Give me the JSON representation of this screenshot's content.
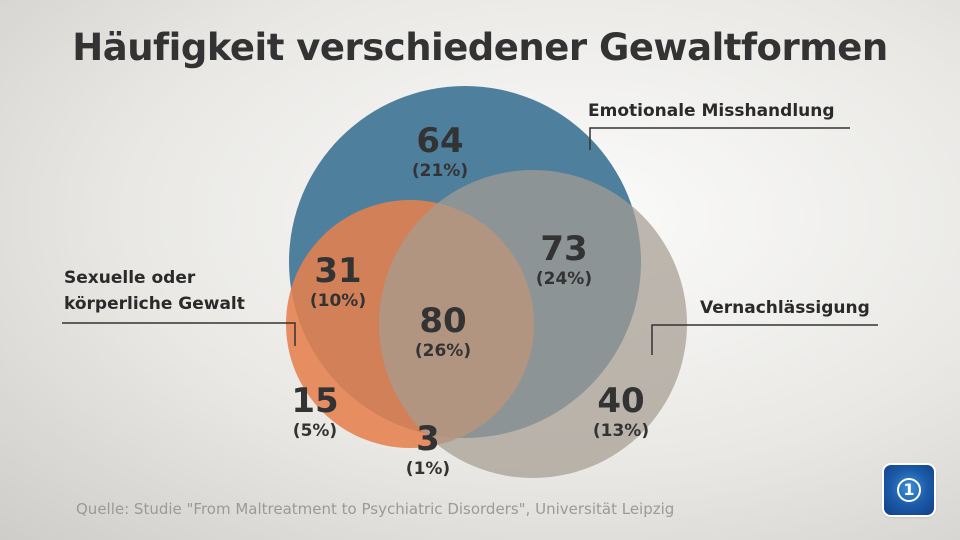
{
  "title": "Häufigkeit verschiedener Gewaltformen",
  "labels": {
    "emotional": "Emotionale Misshandlung",
    "sexual_line1": "Sexuelle oder",
    "sexual_line2": "körperliche Gewalt",
    "neglect": "Vernachlässigung"
  },
  "colors": {
    "emotional": "#4e7f9d",
    "sexual": "#e5814f",
    "neglect": "#a59c91"
  },
  "regions": [
    {
      "id": "emotional-only",
      "count": "64",
      "pct": "(21%)"
    },
    {
      "id": "emotional-sexual",
      "count": "31",
      "pct": "(10%)"
    },
    {
      "id": "emotional-neglect",
      "count": "73",
      "pct": "(24%)"
    },
    {
      "id": "all-three",
      "count": "80",
      "pct": "(26%)"
    },
    {
      "id": "sexual-only",
      "count": "15",
      "pct": "(5%)"
    },
    {
      "id": "sexual-neglect",
      "count": "3",
      "pct": "(1%)"
    },
    {
      "id": "neglect-only",
      "count": "40",
      "pct": "(13%)"
    }
  ],
  "source": "Quelle: Studie \"From Maltreatment to Psychiatric Disorders\", Universität Leipzig",
  "logo_text": "1"
}
